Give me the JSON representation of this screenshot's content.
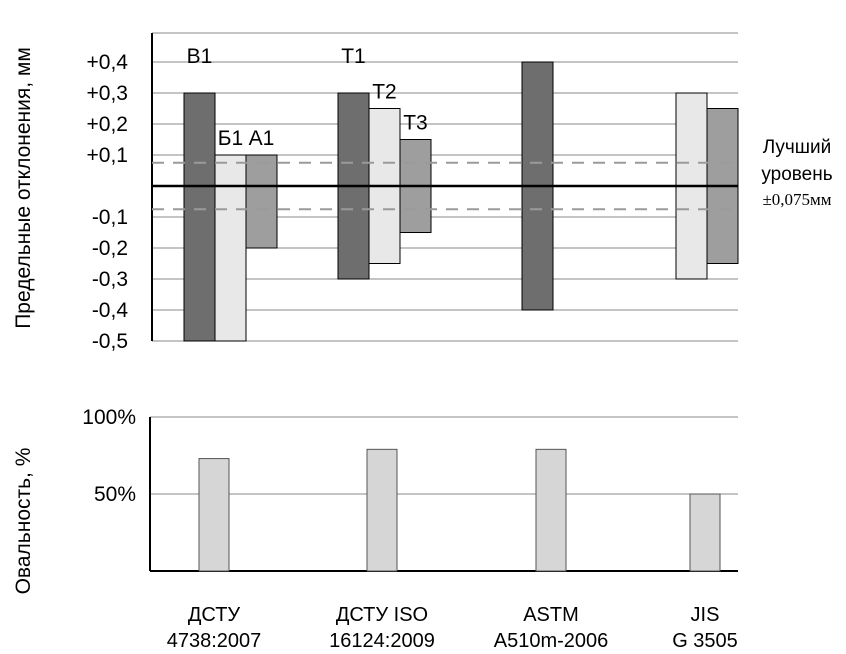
{
  "chart_data": [
    {
      "type": "bar",
      "title": "",
      "ylabel": "Предельные отклонения, мм",
      "ylim": [
        -0.5,
        0.5
      ],
      "y_ticks": [
        {
          "value": 0.4,
          "label": "+0,4"
        },
        {
          "value": 0.3,
          "label": "+0,3"
        },
        {
          "value": 0.2,
          "label": "+0,2"
        },
        {
          "value": 0.1,
          "label": "+0,1"
        },
        {
          "value": -0.1,
          "label": "-0,1"
        },
        {
          "value": -0.2,
          "label": "-0,2"
        },
        {
          "value": -0.3,
          "label": "-0,3"
        },
        {
          "value": -0.4,
          "label": "-0,4"
        },
        {
          "value": -0.5,
          "label": "-0,5"
        }
      ],
      "grid": true,
      "bars": [
        {
          "group": 0,
          "label": "В1",
          "low": -0.5,
          "high": 0.3,
          "color": "#6e6e6e"
        },
        {
          "group": 0,
          "label": "Б1",
          "low": -0.5,
          "high": 0.1,
          "color": "#e8e8e8"
        },
        {
          "group": 0,
          "label": "А1",
          "low": -0.2,
          "high": 0.1,
          "color": "#9e9e9e"
        },
        {
          "group": 1,
          "label": "Т1",
          "low": -0.3,
          "high": 0.3,
          "color": "#6e6e6e"
        },
        {
          "group": 1,
          "label": "Т2",
          "low": -0.25,
          "high": 0.25,
          "color": "#e8e8e8"
        },
        {
          "group": 1,
          "label": "Т3",
          "low": -0.15,
          "high": 0.15,
          "color": "#9e9e9e"
        },
        {
          "group": 2,
          "label": "",
          "low": -0.4,
          "high": 0.4,
          "color": "#6e6e6e"
        },
        {
          "group": 3,
          "label": "",
          "low": -0.3,
          "high": 0.3,
          "color": "#e8e8e8"
        },
        {
          "group": 3,
          "label": "",
          "low": -0.25,
          "high": 0.25,
          "color": "#9e9e9e"
        }
      ],
      "best_level": {
        "value": 0.075,
        "line1": "Лучший",
        "line2": "уровень",
        "line3": "±0,075мм"
      }
    },
    {
      "type": "bar",
      "title": "",
      "ylabel": "Овальность, %",
      "ylim": [
        0,
        100
      ],
      "y_ticks": [
        {
          "value": 100,
          "label": "100%"
        },
        {
          "value": 50,
          "label": "50%"
        }
      ],
      "grid": true,
      "values": [
        73,
        79,
        79,
        50
      ],
      "color": "#d6d6d6"
    }
  ],
  "categories": [
    {
      "line1": "ДСТУ",
      "line2": "4738:2007"
    },
    {
      "line1": "ДСТУ ISO",
      "line2": "16124:2009"
    },
    {
      "line1": "ASTM",
      "line2": "A510m-2006"
    },
    {
      "line1": "JIS",
      "line2": "G 3505"
    }
  ]
}
